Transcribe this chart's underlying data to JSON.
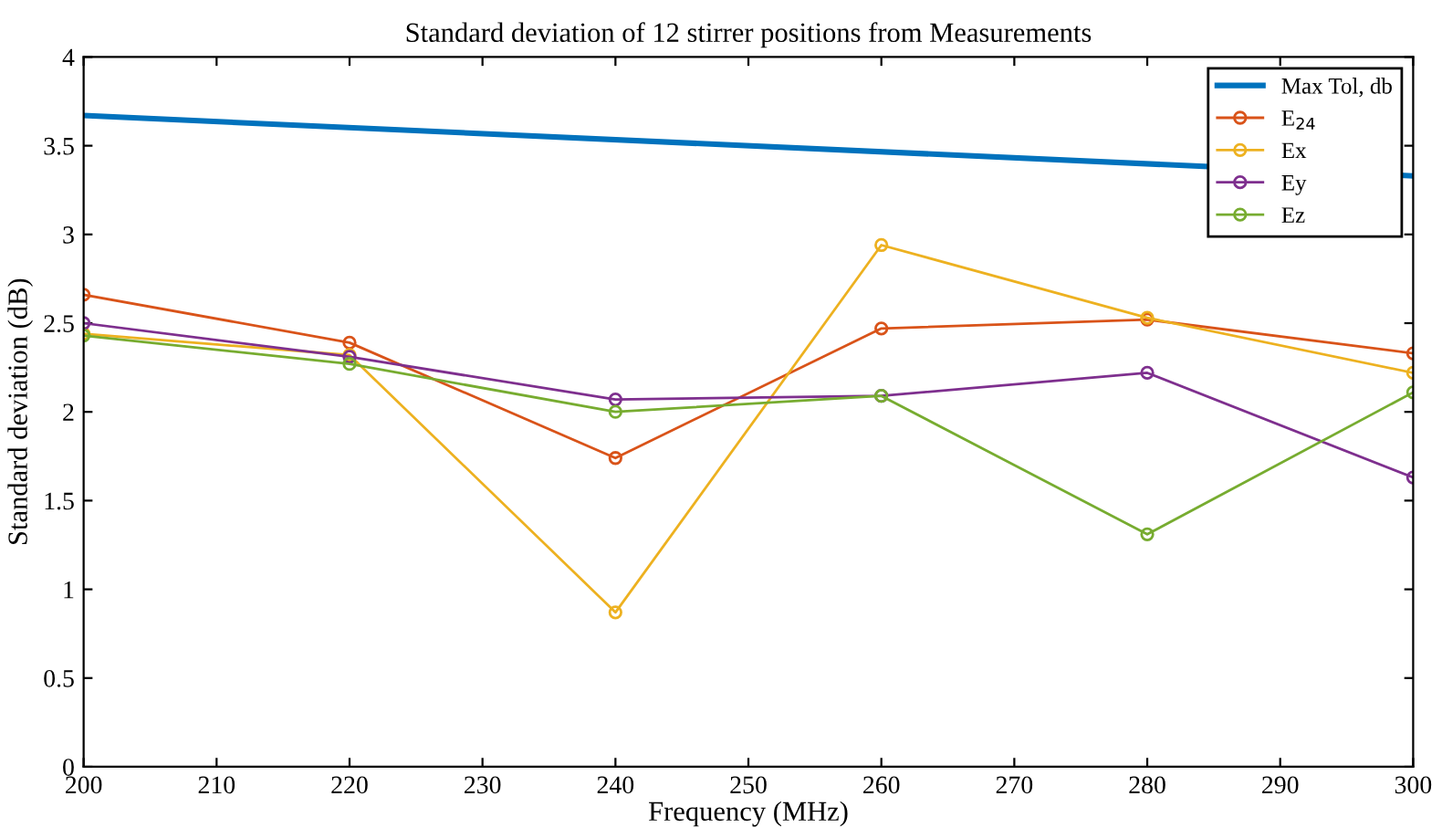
{
  "chart_data": {
    "type": "line",
    "title": "Standard deviation of 12 stirrer positions from Measurements",
    "xlabel": "Frequency (MHz)",
    "ylabel": "Standard deviation (dB)",
    "x": [
      200,
      220,
      240,
      260,
      280,
      300
    ],
    "series": [
      {
        "name": "Max Tol, db",
        "color": "#0072bd",
        "marker": "none",
        "x": [
          200,
          300
        ],
        "values": [
          3.67,
          3.33
        ]
      },
      {
        "name": "E$_{24}$",
        "color": "#d95319",
        "marker": "circle",
        "values": [
          2.66,
          2.39,
          1.74,
          2.47,
          2.52,
          2.33
        ]
      },
      {
        "name": "Ex",
        "color": "#edb120",
        "marker": "circle",
        "values": [
          2.44,
          2.32,
          0.87,
          2.94,
          2.53,
          2.22
        ]
      },
      {
        "name": "Ey",
        "color": "#7e2f8e",
        "marker": "circle",
        "values": [
          2.5,
          2.31,
          2.07,
          2.09,
          2.22,
          1.63
        ]
      },
      {
        "name": "Ez",
        "color": "#77ac30",
        "marker": "circle",
        "values": [
          2.43,
          2.27,
          2.0,
          2.09,
          1.31,
          2.11
        ]
      }
    ],
    "xlim": [
      200,
      300
    ],
    "xticks": [
      200,
      210,
      220,
      230,
      240,
      250,
      260,
      270,
      280,
      290,
      300
    ],
    "ylim": [
      0,
      4
    ],
    "yticks": [
      0,
      0.5,
      1,
      1.5,
      2,
      2.5,
      3,
      3.5,
      4
    ],
    "grid": false,
    "legend": "top right",
    "line_style": "solid"
  }
}
